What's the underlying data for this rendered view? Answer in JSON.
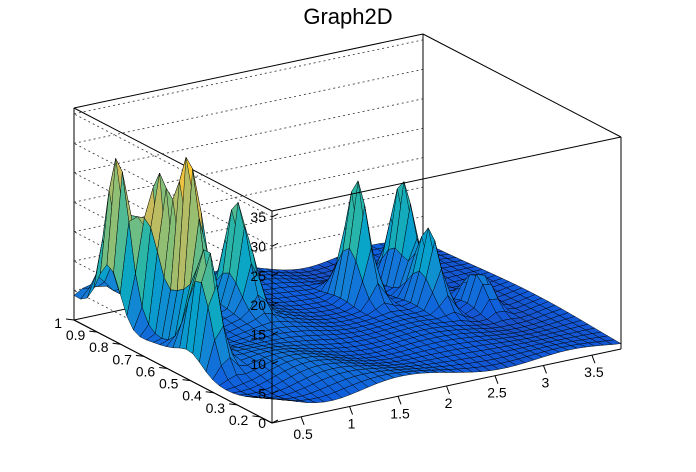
{
  "chart_data": {
    "type": "surface",
    "title": "Graph2D",
    "x_range": [
      0.2,
      3.8
    ],
    "y_range": [
      0.15,
      1.0
    ],
    "z_range": [
      0,
      36
    ],
    "x_ticks": [
      "0.5",
      "1",
      "1.5",
      "2",
      "2.5",
      "3",
      "3.5"
    ],
    "y_ticks": [
      "0.2",
      "0.3",
      "0.4",
      "0.5",
      "0.6",
      "0.7",
      "0.8",
      "0.9",
      "1"
    ],
    "z_ticks": [
      "0",
      "5",
      "10",
      "15",
      "20",
      "25",
      "30",
      "35"
    ],
    "grid": true,
    "colormap": [
      "#352a87",
      "#0f5cdd",
      "#1481d6",
      "#06a4ca",
      "#2eb7a4",
      "#87bf77",
      "#d1bb59",
      "#fec832",
      "#f9fb0e"
    ],
    "peaks": [
      {
        "x": 0.3,
        "y": 0.85,
        "z": 28
      },
      {
        "x": 0.5,
        "y": 0.62,
        "z": 34
      },
      {
        "x": 0.45,
        "y": 0.75,
        "z": 27
      },
      {
        "x": 0.35,
        "y": 0.5,
        "z": 20
      },
      {
        "x": 1.3,
        "y": 0.75,
        "z": 18
      },
      {
        "x": 2.45,
        "y": 0.72,
        "z": 20
      },
      {
        "x": 3.0,
        "y": 0.75,
        "z": 18
      },
      {
        "x": 2.9,
        "y": 0.6,
        "z": 13
      },
      {
        "x": 3.3,
        "y": 0.55,
        "z": 7
      }
    ],
    "base_level": 5
  }
}
